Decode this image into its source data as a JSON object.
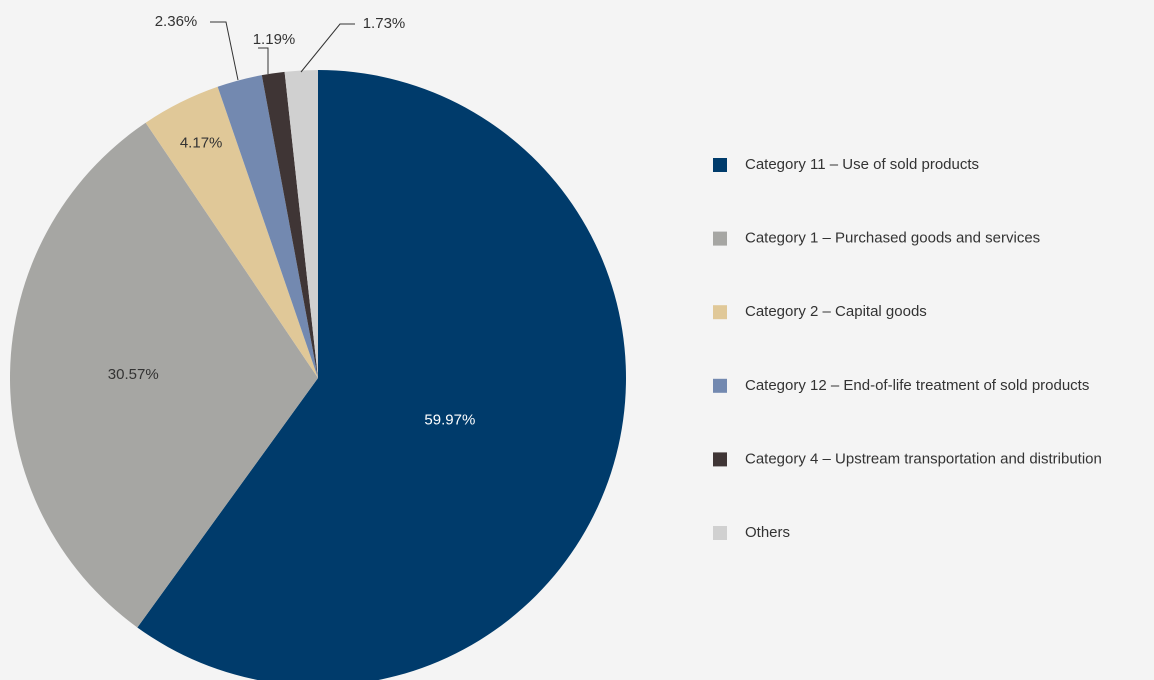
{
  "chart_data": {
    "type": "pie",
    "categories": [
      "Category 11 – Use of sold products",
      "Category 1 – Purchased goods and services",
      "Category 2 – Capital goods",
      "Category 12 – End-of-life treatment of sold products",
      "Category 4 – Upstream transportation and distribution",
      "Others"
    ],
    "values": [
      59.97,
      30.57,
      4.17,
      2.36,
      1.19,
      1.73
    ],
    "value_labels": [
      "59.97%",
      "30.57%",
      "4.17%",
      "2.36%",
      "1.19%",
      "1.73%"
    ],
    "colors": [
      "#003b6b",
      "#a6a6a3",
      "#e0c898",
      "#7389b0",
      "#3f3535",
      "#d0d0d0"
    ],
    "legend": "right"
  }
}
